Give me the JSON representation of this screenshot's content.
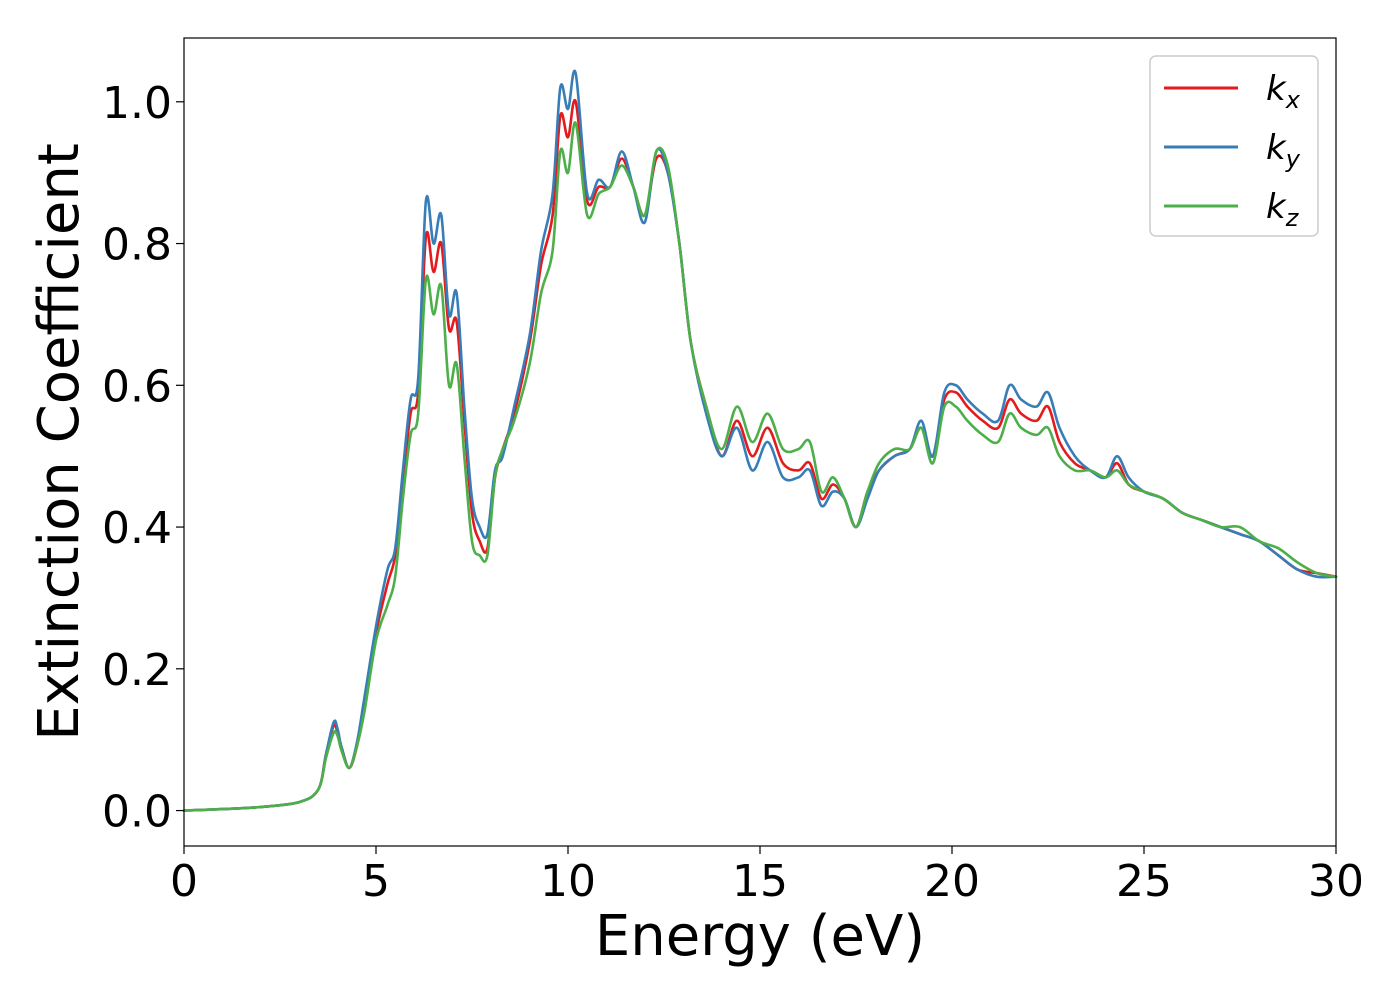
{
  "chart_data": {
    "type": "line",
    "xlabel": "Energy (eV)",
    "ylabel": "Extinction Coefficient",
    "xlim": [
      0,
      30
    ],
    "ylim": [
      -0.05,
      1.09
    ],
    "xticks": [
      0,
      5,
      10,
      15,
      20,
      25,
      30
    ],
    "xtick_labels": [
      "0",
      "5",
      "10",
      "15",
      "20",
      "25",
      "30"
    ],
    "yticks": [
      0.0,
      0.2,
      0.4,
      0.6,
      0.8,
      1.0
    ],
    "ytick_labels": [
      "0.0",
      "0.2",
      "0.4",
      "0.6",
      "0.8",
      "1.0"
    ],
    "legend_position": "top-right",
    "series": [
      {
        "name": "k_x",
        "label_main": "k",
        "label_sub": "x",
        "color": "#e41a1c",
        "x": [
          0,
          1,
          2,
          3,
          3.5,
          3.7,
          3.9,
          4.0,
          4.1,
          4.3,
          4.5,
          4.7,
          5.0,
          5.3,
          5.5,
          5.7,
          5.9,
          6.1,
          6.3,
          6.5,
          6.7,
          6.9,
          7.1,
          7.3,
          7.5,
          7.7,
          7.9,
          8.1,
          8.3,
          8.6,
          9.0,
          9.3,
          9.6,
          9.8,
          10.0,
          10.2,
          10.5,
          10.8,
          11.1,
          11.4,
          11.7,
          12.0,
          12.3,
          12.6,
          12.9,
          13.2,
          13.6,
          14.0,
          14.4,
          14.8,
          15.2,
          15.6,
          16.0,
          16.3,
          16.6,
          16.9,
          17.2,
          17.5,
          17.8,
          18.1,
          18.5,
          18.9,
          19.2,
          19.5,
          19.8,
          20.1,
          20.4,
          20.8,
          21.2,
          21.5,
          21.8,
          22.2,
          22.5,
          22.8,
          23.2,
          23.6,
          24.0,
          24.3,
          24.6,
          25.0,
          25.5,
          26.0,
          26.5,
          27.0,
          27.5,
          28.0,
          28.5,
          29.0,
          29.5,
          30.0
        ],
        "y": [
          0.0,
          0.002,
          0.005,
          0.012,
          0.03,
          0.08,
          0.12,
          0.11,
          0.09,
          0.06,
          0.09,
          0.15,
          0.25,
          0.32,
          0.36,
          0.46,
          0.56,
          0.59,
          0.81,
          0.76,
          0.8,
          0.68,
          0.69,
          0.55,
          0.42,
          0.38,
          0.37,
          0.47,
          0.51,
          0.56,
          0.66,
          0.77,
          0.84,
          0.98,
          0.95,
          1.0,
          0.86,
          0.88,
          0.88,
          0.92,
          0.88,
          0.84,
          0.92,
          0.9,
          0.8,
          0.66,
          0.57,
          0.5,
          0.55,
          0.5,
          0.54,
          0.49,
          0.48,
          0.49,
          0.44,
          0.46,
          0.44,
          0.4,
          0.45,
          0.48,
          0.5,
          0.51,
          0.54,
          0.5,
          0.58,
          0.59,
          0.57,
          0.55,
          0.54,
          0.58,
          0.56,
          0.55,
          0.57,
          0.52,
          0.49,
          0.48,
          0.47,
          0.49,
          0.46,
          0.45,
          0.44,
          0.42,
          0.41,
          0.4,
          0.39,
          0.38,
          0.36,
          0.34,
          0.335,
          0.33
        ]
      },
      {
        "name": "k_y",
        "label_main": "k",
        "label_sub": "y",
        "color": "#377eb8",
        "x": [
          0,
          1,
          2,
          3,
          3.5,
          3.7,
          3.9,
          4.0,
          4.1,
          4.3,
          4.5,
          4.7,
          5.0,
          5.3,
          5.5,
          5.7,
          5.9,
          6.1,
          6.3,
          6.5,
          6.7,
          6.9,
          7.1,
          7.3,
          7.5,
          7.7,
          7.9,
          8.1,
          8.3,
          8.6,
          9.0,
          9.3,
          9.6,
          9.8,
          10.0,
          10.2,
          10.5,
          10.8,
          11.1,
          11.4,
          11.7,
          12.0,
          12.3,
          12.6,
          12.9,
          13.2,
          13.6,
          14.0,
          14.4,
          14.8,
          15.2,
          15.6,
          16.0,
          16.3,
          16.6,
          16.9,
          17.2,
          17.5,
          17.8,
          18.1,
          18.5,
          18.9,
          19.2,
          19.5,
          19.8,
          20.1,
          20.4,
          20.8,
          21.2,
          21.5,
          21.8,
          22.2,
          22.5,
          22.8,
          23.2,
          23.6,
          24.0,
          24.3,
          24.6,
          25.0,
          25.5,
          26.0,
          26.5,
          27.0,
          27.5,
          28.0,
          28.5,
          29.0,
          29.5,
          30.0
        ],
        "y": [
          0.0,
          0.002,
          0.005,
          0.012,
          0.03,
          0.08,
          0.125,
          0.115,
          0.09,
          0.06,
          0.095,
          0.16,
          0.26,
          0.34,
          0.37,
          0.48,
          0.58,
          0.61,
          0.86,
          0.8,
          0.84,
          0.7,
          0.73,
          0.57,
          0.44,
          0.4,
          0.39,
          0.48,
          0.5,
          0.57,
          0.67,
          0.79,
          0.87,
          1.02,
          0.99,
          1.04,
          0.87,
          0.89,
          0.88,
          0.93,
          0.88,
          0.83,
          0.93,
          0.9,
          0.8,
          0.66,
          0.56,
          0.5,
          0.54,
          0.48,
          0.52,
          0.47,
          0.47,
          0.48,
          0.43,
          0.45,
          0.44,
          0.4,
          0.44,
          0.48,
          0.5,
          0.51,
          0.55,
          0.5,
          0.59,
          0.6,
          0.58,
          0.56,
          0.55,
          0.6,
          0.58,
          0.57,
          0.59,
          0.54,
          0.5,
          0.48,
          0.47,
          0.5,
          0.47,
          0.45,
          0.44,
          0.42,
          0.41,
          0.4,
          0.39,
          0.38,
          0.36,
          0.34,
          0.33,
          0.33
        ]
      },
      {
        "name": "k_z",
        "label_main": "k",
        "label_sub": "z",
        "color": "#4daf4a",
        "x": [
          0,
          1,
          2,
          3,
          3.5,
          3.7,
          3.9,
          4.0,
          4.1,
          4.3,
          4.5,
          4.7,
          5.0,
          5.3,
          5.5,
          5.7,
          5.9,
          6.1,
          6.3,
          6.5,
          6.7,
          6.9,
          7.1,
          7.3,
          7.5,
          7.7,
          7.9,
          8.1,
          8.3,
          8.6,
          9.0,
          9.3,
          9.6,
          9.8,
          10.0,
          10.2,
          10.5,
          10.8,
          11.1,
          11.4,
          11.7,
          12.0,
          12.3,
          12.6,
          12.9,
          13.2,
          13.6,
          14.0,
          14.4,
          14.8,
          15.2,
          15.6,
          16.0,
          16.3,
          16.6,
          16.9,
          17.2,
          17.5,
          17.8,
          18.1,
          18.5,
          18.9,
          19.2,
          19.5,
          19.8,
          20.1,
          20.4,
          20.8,
          21.2,
          21.5,
          21.8,
          22.2,
          22.5,
          22.8,
          23.2,
          23.6,
          24.0,
          24.3,
          24.6,
          25.0,
          25.5,
          26.0,
          26.5,
          27.0,
          27.5,
          28.0,
          28.5,
          29.0,
          29.5,
          30.0
        ],
        "y": [
          0.0,
          0.002,
          0.005,
          0.012,
          0.03,
          0.075,
          0.11,
          0.105,
          0.085,
          0.06,
          0.09,
          0.14,
          0.24,
          0.29,
          0.33,
          0.44,
          0.53,
          0.56,
          0.75,
          0.7,
          0.74,
          0.6,
          0.63,
          0.5,
          0.38,
          0.36,
          0.36,
          0.47,
          0.51,
          0.55,
          0.63,
          0.73,
          0.79,
          0.93,
          0.9,
          0.97,
          0.84,
          0.87,
          0.88,
          0.91,
          0.88,
          0.84,
          0.93,
          0.91,
          0.8,
          0.66,
          0.57,
          0.51,
          0.57,
          0.52,
          0.56,
          0.51,
          0.51,
          0.52,
          0.45,
          0.47,
          0.44,
          0.4,
          0.45,
          0.49,
          0.51,
          0.51,
          0.54,
          0.49,
          0.57,
          0.57,
          0.55,
          0.53,
          0.52,
          0.56,
          0.54,
          0.53,
          0.54,
          0.5,
          0.48,
          0.48,
          0.47,
          0.48,
          0.46,
          0.45,
          0.44,
          0.42,
          0.41,
          0.4,
          0.4,
          0.38,
          0.37,
          0.35,
          0.335,
          0.33
        ]
      }
    ]
  }
}
